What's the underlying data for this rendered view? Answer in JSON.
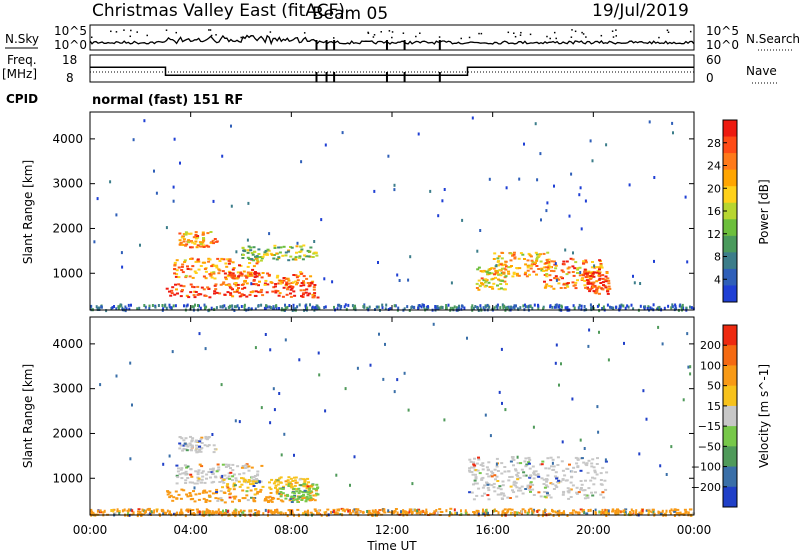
{
  "header": {
    "title": "Christmas Valley East (fitACF)",
    "beam": "Beam 05",
    "date": "19/Jul/2019"
  },
  "chart_data": [
    {
      "type": "line",
      "panel": "noise-sky-search",
      "left_label": "N.Sky",
      "right_label": "N.Search",
      "left_ticks": [
        "10^5",
        "10^0"
      ],
      "right_ticks": [
        "10^5",
        "10^0"
      ]
    },
    {
      "type": "line",
      "panel": "frequency-nave",
      "left_label": "Freq.",
      "left_unit": "[MHz]",
      "right_label": "Nave",
      "left_ticks": [
        18,
        8
      ],
      "right_ticks": [
        60,
        0
      ],
      "frequency_steps": [
        {
          "from_hour": 0,
          "to_hour": 3.0,
          "mhz": 13.5
        },
        {
          "from_hour": 3.0,
          "to_hour": 15.0,
          "mhz": 10.5
        },
        {
          "from_hour": 15.0,
          "to_hour": 24,
          "mhz": 13.5
        }
      ],
      "nave_level": 10.5
    },
    {
      "type": "text",
      "panel": "cpid",
      "label": "CPID",
      "value": "normal (fast) 151 RF"
    },
    {
      "type": "heatmap",
      "panel": "power",
      "ylabel": "Slant Range [km]",
      "yticks": [
        1000,
        2000,
        3000,
        4000
      ],
      "ylim": [
        180,
        4600
      ],
      "colorbar": {
        "label": "Power [dB]",
        "ticks": [
          "4",
          "8",
          "12",
          "16",
          "20",
          "24",
          "28"
        ],
        "colors": [
          "#1f3fd4",
          "#2f5fb8",
          "#3c7d8a",
          "#4a9a5c",
          "#6cbf3c",
          "#b7d630",
          "#ffd11a",
          "#ffa500",
          "#ff7a1a",
          "#ff4b16",
          "#ee1a10"
        ]
      },
      "regions": [
        {
          "x_hours": [
            3.5,
            5.0
          ],
          "range_km": [
            1600,
            1950
          ],
          "level": 0.7
        },
        {
          "x_hours": [
            3.3,
            6.8
          ],
          "range_km": [
            900,
            1350
          ],
          "level": 0.75
        },
        {
          "x_hours": [
            3.0,
            9.0
          ],
          "range_km": [
            480,
            780
          ],
          "level": 0.92
        },
        {
          "x_hours": [
            5.2,
            8.8
          ],
          "range_km": [
            750,
            1050
          ],
          "level": 0.8
        },
        {
          "x_hours": [
            6.0,
            9.0
          ],
          "range_km": [
            1300,
            1650
          ],
          "level": 0.45
        },
        {
          "x_hours": [
            15.3,
            16.5
          ],
          "range_km": [
            650,
            1150
          ],
          "level": 0.6
        },
        {
          "x_hours": [
            16.0,
            18.2
          ],
          "range_km": [
            950,
            1500
          ],
          "level": 0.65
        },
        {
          "x_hours": [
            18.0,
            20.3
          ],
          "range_km": [
            650,
            1350
          ],
          "level": 0.75
        },
        {
          "x_hours": [
            19.6,
            20.6
          ],
          "range_km": [
            550,
            1050
          ],
          "level": 0.88
        }
      ]
    },
    {
      "type": "heatmap",
      "panel": "velocity",
      "ylabel": "Slant Range [km]",
      "yticks": [
        1000,
        2000,
        3000,
        4000
      ],
      "ylim": [
        180,
        4600
      ],
      "colorbar": {
        "label": "Velocity [m s^-1]",
        "ticks": [
          "200",
          "100",
          "50",
          "15",
          "−15",
          "−50",
          "−100",
          "−200"
        ],
        "colors": [
          "#2040c8",
          "#3a6fa8",
          "#4f9a5a",
          "#77c84a",
          "#c7c7c7",
          "#f7c21c",
          "#f89a16",
          "#f56a12",
          "#ee2a10"
        ]
      },
      "regions": [
        {
          "x_hours": [
            3.5,
            5.0
          ],
          "range_km": [
            1600,
            1950
          ],
          "color": "#c7c7c7"
        },
        {
          "x_hours": [
            3.3,
            6.8
          ],
          "range_km": [
            900,
            1350
          ],
          "color": "#c7c7c7"
        },
        {
          "x_hours": [
            3.0,
            9.0
          ],
          "range_km": [
            480,
            780
          ],
          "color": "#f89a16"
        },
        {
          "x_hours": [
            5.2,
            8.8
          ],
          "range_km": [
            750,
            1050
          ],
          "color": "#f7c21c"
        },
        {
          "x_hours": [
            7.5,
            9.0
          ],
          "range_km": [
            480,
            900
          ],
          "color": "#77c84a"
        },
        {
          "x_hours": [
            15.0,
            20.5
          ],
          "range_km": [
            550,
            1500
          ],
          "color": "#c7c7c7"
        },
        {
          "x_hours": [
            0,
            24
          ],
          "range_km": [
            200,
            340
          ],
          "color": "#f89a16"
        }
      ]
    }
  ],
  "xaxis": {
    "label": "Time UT",
    "ticks": [
      "00:00",
      "04:00",
      "08:00",
      "12:00",
      "16:00",
      "20:00",
      "00:00"
    ]
  }
}
